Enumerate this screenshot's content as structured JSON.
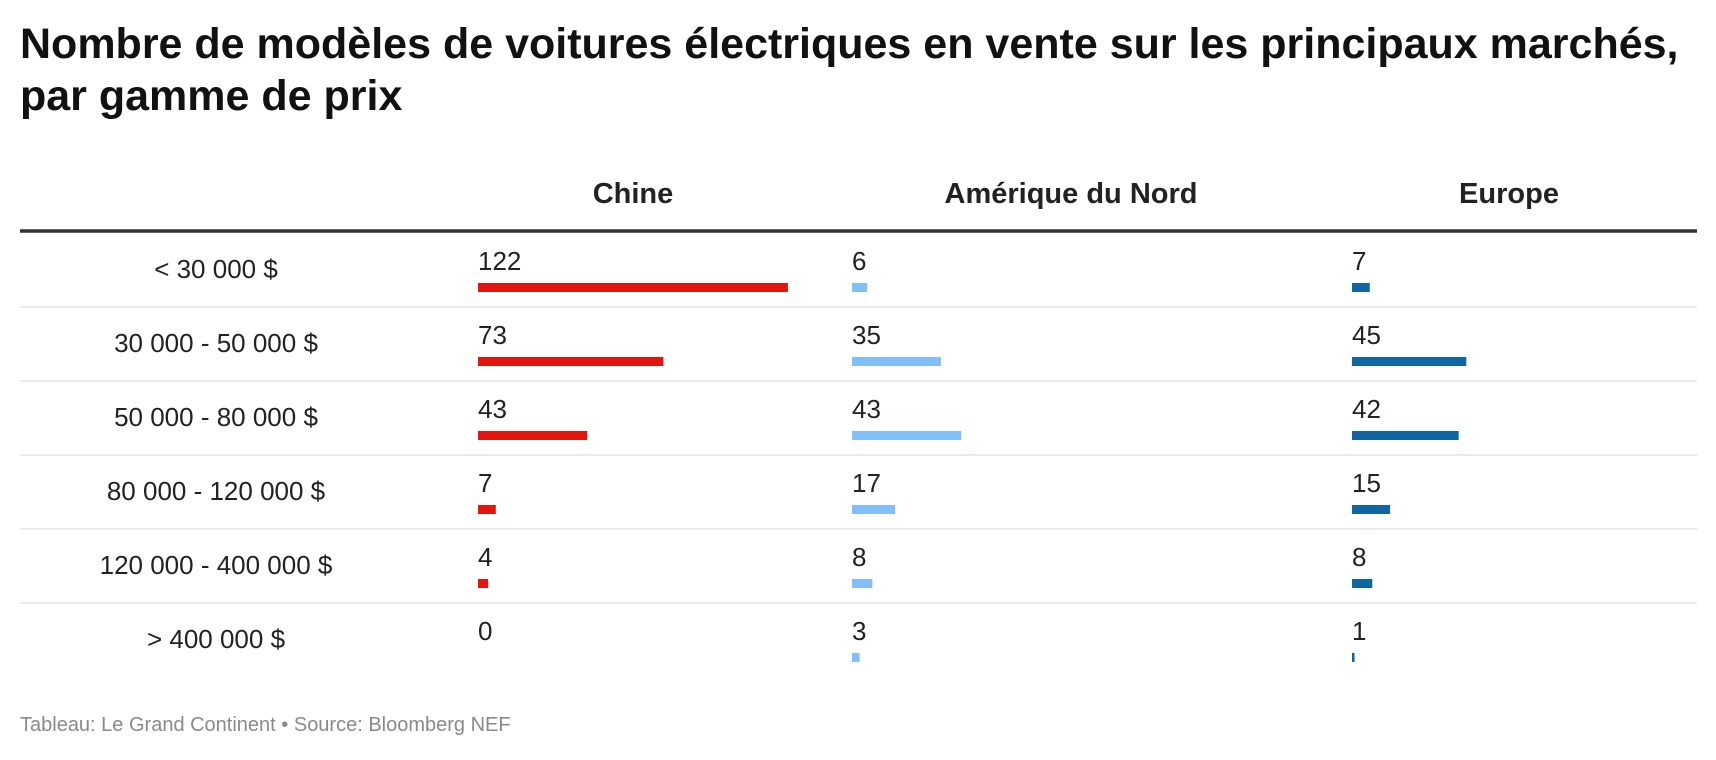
{
  "title": "Nombre de modèles de voitures électriques en vente sur les principaux marchés, par gamme de prix",
  "footer": "Tableau: Le Grand Continent • Source: Bloomberg NEF",
  "chart_data": {
    "type": "table",
    "title": "Nombre de modèles de voitures électriques en vente sur les principaux marchés, par gamme de prix",
    "row_header": "",
    "categories": [
      "< 30 000 $",
      "30 000 - 50 000 $",
      "50 000 - 80 000 $",
      "80 000 - 120 000 $",
      "120 000 - 400 000 $",
      "> 400 000 $"
    ],
    "series": [
      {
        "name": "Chine",
        "color": "#e3150f",
        "values": [
          122,
          73,
          43,
          7,
          4,
          0
        ]
      },
      {
        "name": "Amérique du Nord",
        "color": "#80bff7",
        "values": [
          6,
          35,
          43,
          17,
          8,
          3
        ]
      },
      {
        "name": "Europe",
        "color": "#0f66a2",
        "values": [
          7,
          45,
          42,
          15,
          8,
          1
        ]
      }
    ],
    "colors": {
      "text": "#222222",
      "header_rule": "#333333",
      "row_divider": "#e2e2e2",
      "footer": "#8a8a8a"
    }
  }
}
